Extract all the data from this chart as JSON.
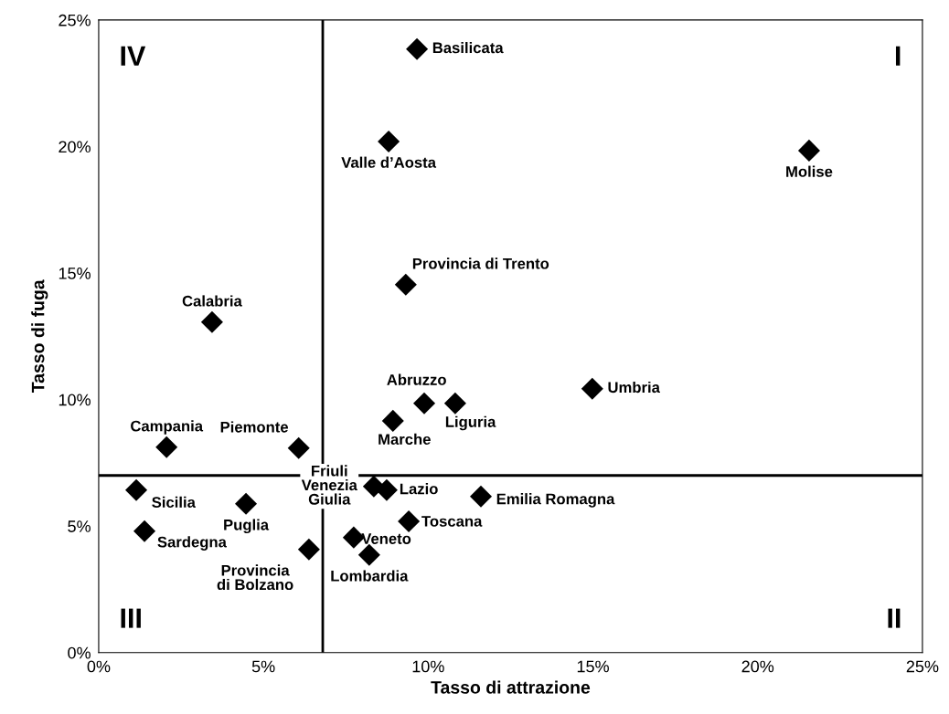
{
  "chart_data": {
    "type": "scatter",
    "xlabel": "Tasso di attrazione",
    "ylabel": "Tasso di fuga",
    "x": [
      9.66,
      8.8,
      21.56,
      9.32,
      14.98,
      3.44,
      9.88,
      10.82,
      8.93,
      2.06,
      6.07,
      1.14,
      4.47,
      1.39,
      8.35,
      8.74,
      11.6,
      9.41,
      7.74,
      8.21,
      6.38
    ],
    "series": [
      {
        "color": "#000000",
        "values": [
          23.85,
          20.2,
          19.84,
          14.54,
          10.43,
          13.06,
          9.85,
          9.85,
          9.16,
          8.12,
          8.08,
          6.42,
          5.88,
          4.8,
          6.57,
          6.42,
          6.17,
          5.19,
          4.55,
          3.86,
          4.08
        ]
      }
    ],
    "marker": "diamond",
    "xlim": [
      0,
      25
    ],
    "ylim": [
      0,
      25
    ],
    "xticks": [
      {
        "value": 0,
        "label": "0%"
      },
      {
        "value": 5,
        "label": "5%"
      },
      {
        "value": 10,
        "label": "10%"
      },
      {
        "value": 15,
        "label": "15%"
      },
      {
        "value": 20,
        "label": "20%"
      },
      {
        "value": 25,
        "label": "25%"
      }
    ],
    "yticks": [
      {
        "value": 0,
        "label": "0%"
      },
      {
        "value": 5,
        "label": "5%"
      },
      {
        "value": 10,
        "label": "10%"
      },
      {
        "value": 15,
        "label": "15%"
      },
      {
        "value": 20,
        "label": "20%"
      },
      {
        "value": 25,
        "label": "25%"
      }
    ],
    "ref_lines": [
      {
        "axis": "x",
        "value": 6.8,
        "color": "#000000"
      },
      {
        "axis": "y",
        "value": 7.0,
        "color": "#000000"
      }
    ],
    "grid": false,
    "annotations": [
      {
        "text": "Basilicata",
        "x": 9.66,
        "y": 23.85
      },
      {
        "text": "Valle d’Aosta",
        "x": 8.8,
        "y": 20.2
      },
      {
        "text": "Molise",
        "x": 21.56,
        "y": 19.84
      },
      {
        "text": "Provincia di Trento",
        "x": 9.32,
        "y": 14.54
      },
      {
        "text": "Umbria",
        "x": 14.98,
        "y": 10.43
      },
      {
        "text": "Calabria",
        "x": 3.44,
        "y": 13.06
      },
      {
        "text": "Abruzzo",
        "x": 9.88,
        "y": 9.85
      },
      {
        "text": "Liguria",
        "x": 10.82,
        "y": 9.85
      },
      {
        "text": "Marche",
        "x": 8.93,
        "y": 9.16
      },
      {
        "text": "Campania",
        "x": 2.06,
        "y": 8.12
      },
      {
        "text": "Piemonte",
        "x": 6.07,
        "y": 8.08
      },
      {
        "text": "Sicilia",
        "x": 1.14,
        "y": 6.42
      },
      {
        "text": "Puglia",
        "x": 4.47,
        "y": 5.88
      },
      {
        "text": "Sardegna",
        "x": 1.39,
        "y": 4.8
      },
      {
        "text": "Friuli\nVenezia\nGiulia",
        "x": 8.35,
        "y": 6.57
      },
      {
        "text": "Lazio",
        "x": 8.74,
        "y": 6.42
      },
      {
        "text": "Emilia Romagna",
        "x": 11.6,
        "y": 6.17
      },
      {
        "text": "Toscana",
        "x": 9.41,
        "y": 5.19
      },
      {
        "text": "Veneto",
        "x": 7.74,
        "y": 4.55
      },
      {
        "text": "Lombardia",
        "x": 8.21,
        "y": 3.86
      },
      {
        "text": "Provincia\ndi Bolzano",
        "x": 6.38,
        "y": 4.08
      },
      "I",
      "II",
      "III",
      "IV"
    ]
  }
}
